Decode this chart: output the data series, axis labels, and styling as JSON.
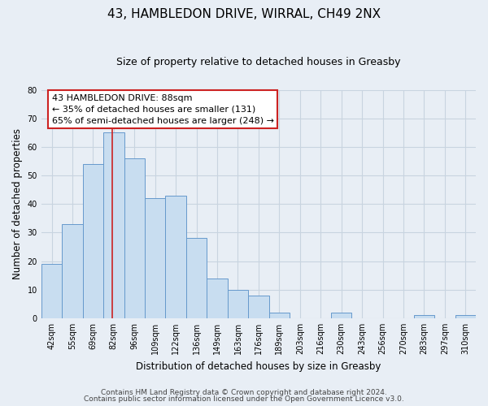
{
  "title": "43, HAMBLEDON DRIVE, WIRRAL, CH49 2NX",
  "subtitle": "Size of property relative to detached houses in Greasby",
  "xlabel": "Distribution of detached houses by size in Greasby",
  "ylabel": "Number of detached properties",
  "bin_labels": [
    "42sqm",
    "55sqm",
    "69sqm",
    "82sqm",
    "96sqm",
    "109sqm",
    "122sqm",
    "136sqm",
    "149sqm",
    "163sqm",
    "176sqm",
    "189sqm",
    "203sqm",
    "216sqm",
    "230sqm",
    "243sqm",
    "256sqm",
    "270sqm",
    "283sqm",
    "297sqm",
    "310sqm"
  ],
  "bar_values": [
    19,
    33,
    54,
    65,
    56,
    42,
    43,
    28,
    14,
    10,
    8,
    2,
    0,
    0,
    2,
    0,
    0,
    0,
    1,
    0,
    1
  ],
  "bar_color": "#c8ddf0",
  "bar_edge_color": "#6699cc",
  "annotation_text": "43 HAMBLEDON DRIVE: 88sqm\n← 35% of detached houses are smaller (131)\n65% of semi-detached houses are larger (248) →",
  "annotation_box_color": "white",
  "annotation_box_edge_color": "#cc2222",
  "marker_line_color": "#cc2222",
  "ylim": [
    0,
    80
  ],
  "yticks": [
    0,
    10,
    20,
    30,
    40,
    50,
    60,
    70,
    80
  ],
  "footer1": "Contains HM Land Registry data © Crown copyright and database right 2024.",
  "footer2": "Contains public sector information licensed under the Open Government Licence v3.0.",
  "background_color": "#e8eef5",
  "grid_color": "#c8d4e0",
  "title_fontsize": 11,
  "subtitle_fontsize": 9,
  "axis_label_fontsize": 8.5,
  "tick_fontsize": 7,
  "annotation_fontsize": 8,
  "footer_fontsize": 6.5
}
